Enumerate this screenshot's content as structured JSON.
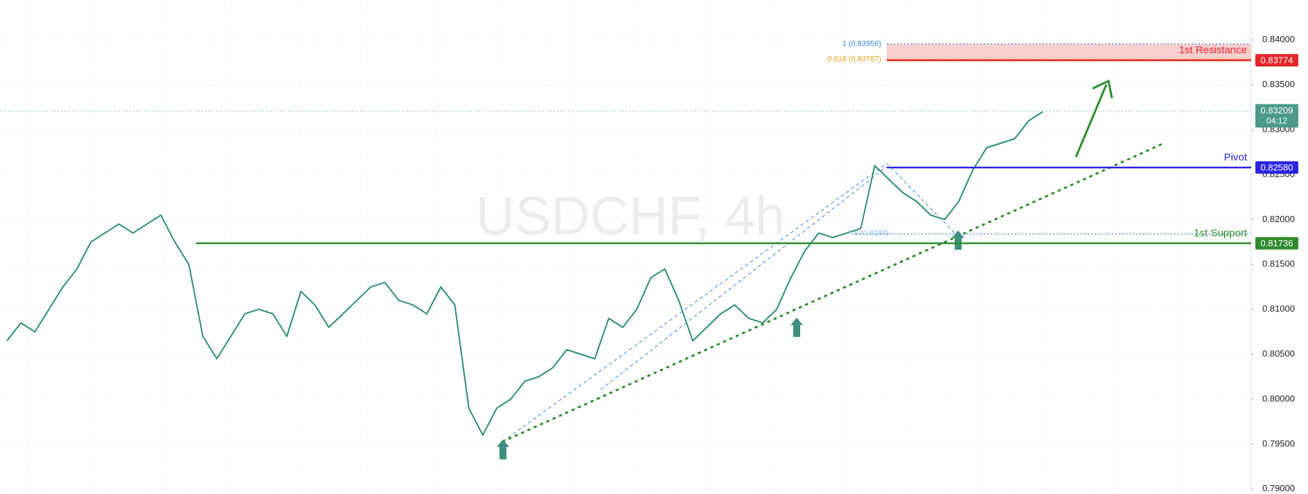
{
  "chart_data": {
    "type": "line",
    "title": "USDCHF, 4h",
    "color": "#2e8b74",
    "values": [
      0.8065,
      0.8085,
      0.8075,
      0.81,
      0.8125,
      0.8145,
      0.8175,
      0.8185,
      0.8195,
      0.8185,
      0.8195,
      0.8205,
      0.8175,
      0.815,
      0.807,
      0.8045,
      0.807,
      0.8095,
      0.81,
      0.8095,
      0.807,
      0.812,
      0.8105,
      0.808,
      0.8095,
      0.811,
      0.8125,
      0.813,
      0.811,
      0.8105,
      0.8095,
      0.8125,
      0.8105,
      0.799,
      0.796,
      0.799,
      0.8,
      0.802,
      0.8025,
      0.8035,
      0.8055,
      0.805,
      0.8045,
      0.809,
      0.808,
      0.81,
      0.8135,
      0.8145,
      0.811,
      0.8065,
      0.808,
      0.8095,
      0.8105,
      0.809,
      0.8085,
      0.81,
      0.8135,
      0.8165,
      0.8185,
      0.818,
      0.8185,
      0.819,
      0.826,
      0.8245,
      0.823,
      0.822,
      0.8205,
      0.82,
      0.822,
      0.8255,
      0.828,
      0.8285,
      0.829,
      0.831,
      0.832
    ],
    "ylim": [
      0.78944,
      0.84445
    ],
    "yticks": [
      {
        "value": 0.79,
        "label": "0.79000"
      },
      {
        "value": 0.795,
        "label": "0.79500"
      },
      {
        "value": 0.8,
        "label": "0.80000"
      },
      {
        "value": 0.805,
        "label": "0.80500"
      },
      {
        "value": 0.81,
        "label": "0.81000"
      },
      {
        "value": 0.815,
        "label": "0.81500"
      },
      {
        "value": 0.82,
        "label": "0.82000"
      },
      {
        "value": 0.825,
        "label": "0.82500"
      },
      {
        "value": 0.83,
        "label": "0.83000"
      },
      {
        "value": 0.835,
        "label": "0.83500"
      },
      {
        "value": 0.84,
        "label": "0.84000"
      }
    ],
    "grid": true,
    "levels": [
      {
        "name": "1st Resistance",
        "value": 0.83774,
        "label": "0.83774",
        "color": "#e5252a"
      },
      {
        "name": "Pivot",
        "value": 0.8258,
        "label": "0.82580",
        "color": "#2a24e0"
      },
      {
        "name": "1st Support",
        "value": 0.81736,
        "label": "0.81736",
        "color": "#2e8b2e"
      }
    ],
    "resistance_zone": [
      0.83774,
      0.83956
    ],
    "fib_levels": [
      {
        "value": 0.83956,
        "label": "1 (0.83956)",
        "color": "#3d7fd8"
      },
      {
        "value": 0.83787,
        "label": "0.618 (0.83787)",
        "color": "#e8a020"
      },
      {
        "value": 0.8184,
        "label": "0 (0.8184)",
        "color": "#3d7fd8"
      }
    ],
    "last_price": {
      "value": 0.83209,
      "label": "0.83209",
      "countdown": "04:12",
      "color": "#4a9a86"
    }
  }
}
